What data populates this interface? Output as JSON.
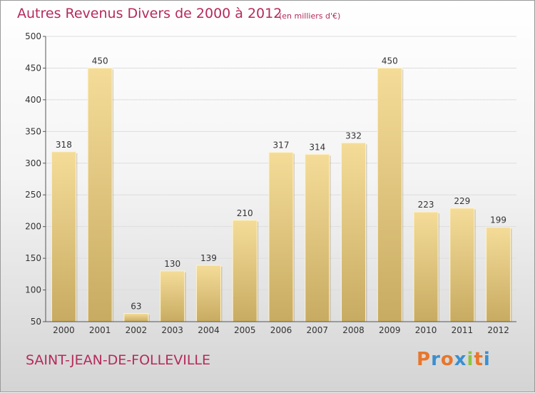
{
  "title": "Autres Revenus Divers de 2000 à 2012",
  "unit": "(en milliers d'€)",
  "commune": "SAINT-JEAN-DE-FOLLEVILLE",
  "logo": {
    "letters": [
      "P",
      "r",
      "o",
      "x",
      "i",
      "t",
      "i"
    ],
    "colors": [
      "#e8762b",
      "#3b8fd0",
      "#e8762b",
      "#3b8fd0",
      "#8cc63f",
      "#e8762b",
      "#3b8fd0"
    ]
  },
  "colors": {
    "bar_light": "#f4dc98",
    "bar_dark": "#c8ab62",
    "accent": "#b52a5c"
  },
  "chart_data": {
    "type": "bar",
    "categories": [
      "2000",
      "2001",
      "2002",
      "2003",
      "2004",
      "2005",
      "2006",
      "2007",
      "2008",
      "2009",
      "2010",
      "2011",
      "2012"
    ],
    "values": [
      318,
      450,
      63,
      130,
      139,
      210,
      317,
      314,
      332,
      450,
      223,
      229,
      199
    ],
    "title": "Autres Revenus Divers de 2000 à 2012",
    "xlabel": "",
    "ylabel": "",
    "ylim": [
      50,
      500
    ],
    "yticks": [
      50,
      100,
      150,
      200,
      250,
      300,
      350,
      400,
      450,
      500
    ],
    "grid": true
  }
}
